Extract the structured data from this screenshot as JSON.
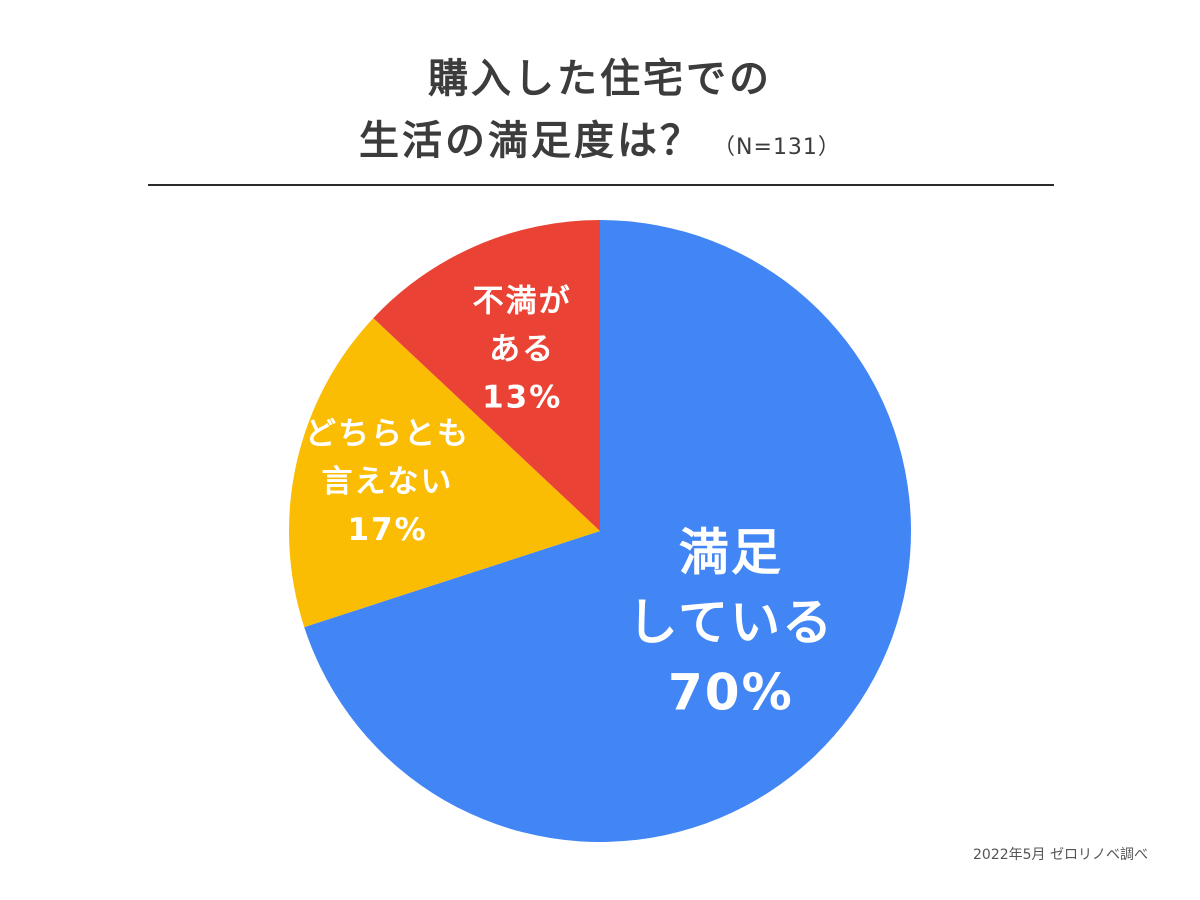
{
  "title": {
    "line1": "購入した住宅での",
    "line2": "生活の満足度は？",
    "sample": "（N=131）"
  },
  "source": "2022年5月 ゼロリノベ調べ",
  "chart_data": {
    "type": "pie",
    "title": "購入した住宅での生活の満足度は？",
    "sample_size": "N=131",
    "start_angle_deg": 0,
    "direction": "clockwise",
    "slices": [
      {
        "label_lines": [
          "満足",
          "している"
        ],
        "value": 70,
        "value_label": "70%",
        "color": "#4285f4"
      },
      {
        "label_lines": [
          "どちらとも",
          "言えない"
        ],
        "value": 17,
        "value_label": "17%",
        "color": "#fbbc04"
      },
      {
        "label_lines": [
          "不満が",
          "ある"
        ],
        "value": 13,
        "value_label": "13%",
        "color": "#ea4335"
      }
    ]
  }
}
